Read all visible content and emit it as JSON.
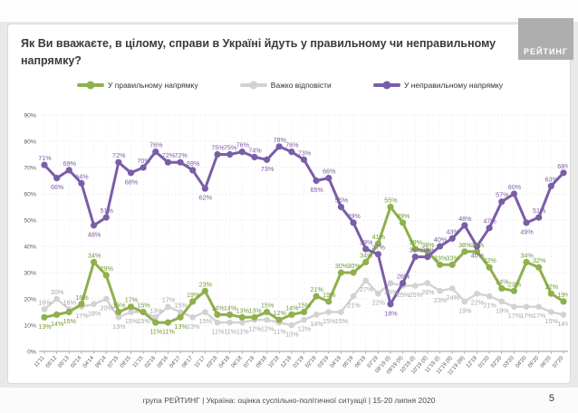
{
  "logo": {
    "text": "РЕЙТИНГ"
  },
  "title": "Як Ви вважаєте, в цілому, справи в Україні йдуть у правильному чи неправильному напрямку?",
  "footer": {
    "text": "група РЕЙТИНГ |  Україна: оцінка суспільно-політичної ситуації  | 15-20 липня 2020",
    "page_number": "5"
  },
  "chart_data": {
    "type": "line",
    "title": "Як Ви вважаєте, в цілому, справи в Україні йдуть у правильному чи неправильному напрямку?",
    "xlabel": "",
    "ylabel": "",
    "ylim": [
      0,
      90
    ],
    "yticks": [
      "0%",
      "10%",
      "20%",
      "30%",
      "40%",
      "50%",
      "60%",
      "70%",
      "80%",
      "90%"
    ],
    "grid": true,
    "legend_position": "top",
    "categories": [
      "11'11",
      "05'12",
      "05'13",
      "02'14",
      "04'14",
      "09'14",
      "07'15",
      "09'15",
      "11'15",
      "02'16",
      "09'16",
      "04'17",
      "08'17",
      "11'17",
      "03'18",
      "04'18",
      "06'18",
      "07'18",
      "09'18",
      "10'18",
      "12'18",
      "01'19",
      "02'19",
      "03'19",
      "04'19",
      "05'19",
      "06'19",
      "07'19",
      "09'19 (I)",
      "09'19 (II)",
      "10'19 (I)",
      "10'19 (II)",
      "11'19 (I)",
      "11'19 (II)",
      "11'19 (III)",
      "12'19",
      "01'20",
      "02'20",
      "03'20",
      "04'20",
      "05'20",
      "06'20",
      "07'20"
    ],
    "series": [
      {
        "name": "У правильному напрямку",
        "color": "#8fb04c",
        "label_color": "#769a35",
        "values": [
          13,
          14,
          15,
          18,
          34,
          29,
          15,
          17,
          15,
          11,
          11,
          13,
          19,
          23,
          14,
          14,
          13,
          13,
          15,
          12,
          14,
          15,
          21,
          19,
          30,
          30,
          34,
          41,
          55,
          49,
          39,
          38,
          33,
          33,
          38,
          38,
          32,
          24,
          23,
          34,
          32,
          22,
          19
        ]
      },
      {
        "name": "Важко відповісти",
        "color": "#d2d2d2",
        "label_color": "#a8a8a8",
        "values": [
          16,
          20,
          16,
          17,
          18,
          20,
          13,
          15,
          15,
          13,
          17,
          15,
          13,
          15,
          11,
          11,
          11,
          12,
          12,
          11,
          10,
          12,
          14,
          15,
          15,
          21,
          27,
          22,
          26,
          25,
          25,
          26,
          23,
          24,
          19,
          22,
          21,
          19,
          17,
          17,
          17,
          15,
          14
        ]
      },
      {
        "name": "У неправильному напрямку",
        "color": "#7a5da8",
        "label_color": "#7a5da8",
        "values": [
          71,
          66,
          69,
          64,
          48,
          51,
          72,
          68,
          70,
          76,
          72,
          72,
          69,
          62,
          75,
          75,
          76,
          74,
          73,
          78,
          76,
          73,
          65,
          66,
          55,
          49,
          39,
          37,
          18,
          26,
          36,
          36,
          40,
          43,
          48,
          40,
          47,
          57,
          60,
          49,
          51,
          63,
          68
        ]
      }
    ]
  }
}
